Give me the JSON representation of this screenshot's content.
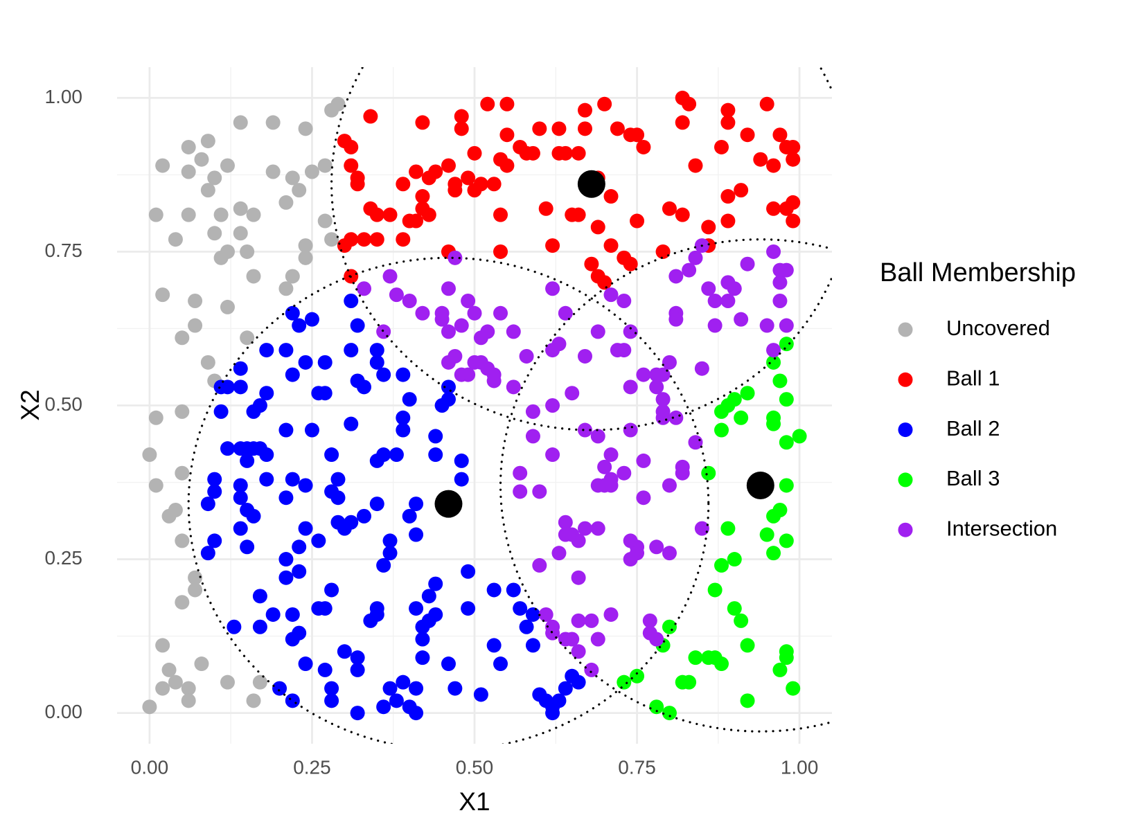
{
  "chart_data": {
    "type": "scatter",
    "xlabel": "X1",
    "ylabel": "X2",
    "legend_title": "Ball Membership",
    "legend": "right",
    "grid": true,
    "xlim": [
      -0.05,
      1.05
    ],
    "ylim": [
      -0.05,
      1.05
    ],
    "xticks": [
      {
        "value": 0,
        "label": "0.00"
      },
      {
        "value": 0.25,
        "label": "0.25"
      },
      {
        "value": 0.5,
        "label": "0.50"
      },
      {
        "value": 0.75,
        "label": "0.75"
      },
      {
        "value": 1,
        "label": "1.00"
      }
    ],
    "yticks": [
      {
        "value": 0,
        "label": "0.00"
      },
      {
        "value": 0.25,
        "label": "0.25"
      },
      {
        "value": 0.5,
        "label": "0.50"
      },
      {
        "value": 0.75,
        "label": "0.75"
      },
      {
        "value": 1,
        "label": "1.00"
      }
    ],
    "radius": 0.4,
    "centers": {
      "color": "#000000",
      "x": [
        0.68,
        0.46,
        0.94
      ],
      "values": [
        0.86,
        0.34,
        0.37
      ]
    },
    "series": [
      {
        "name": "Uncovered",
        "color": "#b3b3b3",
        "x": [
          0.01,
          0.02,
          0.06,
          0.06,
          0.06,
          0.04,
          0.09,
          0.08,
          0.1,
          0.12,
          0.09,
          0.11,
          0.14,
          0.14,
          0.16,
          0.14,
          0.19,
          0.24,
          0.19,
          0.22,
          0.25,
          0.27,
          0.21,
          0.23,
          0.27,
          0.28,
          0.29,
          0.28,
          0.24,
          0.24,
          0.1,
          0.11,
          0.12,
          0.15,
          0.16,
          0.21,
          0.22,
          0.12,
          0.02,
          0.07,
          0.07,
          0.05,
          0.15,
          0.09,
          0.1,
          0.01,
          0.05,
          0.0,
          0.01,
          0.05,
          0.04,
          0.03,
          0.05,
          0.07,
          0.07,
          0.05,
          0.02,
          0.08,
          0.03,
          0.02,
          0.04,
          0.06,
          0.06,
          0.12,
          0.17,
          0.16,
          0.0
        ],
        "values": [
          0.81,
          0.89,
          0.92,
          0.88,
          0.81,
          0.77,
          0.93,
          0.9,
          0.87,
          0.89,
          0.85,
          0.81,
          0.82,
          0.78,
          0.81,
          0.96,
          0.96,
          0.95,
          0.88,
          0.87,
          0.88,
          0.89,
          0.83,
          0.85,
          0.8,
          0.98,
          0.99,
          0.77,
          0.76,
          0.74,
          0.78,
          0.74,
          0.75,
          0.75,
          0.71,
          0.69,
          0.71,
          0.66,
          0.68,
          0.67,
          0.63,
          0.61,
          0.61,
          0.57,
          0.54,
          0.48,
          0.49,
          0.42,
          0.37,
          0.39,
          0.33,
          0.32,
          0.28,
          0.22,
          0.2,
          0.18,
          0.11,
          0.08,
          0.07,
          0.04,
          0.05,
          0.04,
          0.02,
          0.05,
          0.05,
          0.02,
          0.01
        ]
      },
      {
        "name": "Ball 1",
        "color": "#ff0000",
        "x": [
          0.3,
          0.31,
          0.31,
          0.32,
          0.32,
          0.34,
          0.3,
          0.31,
          0.33,
          0.35,
          0.34,
          0.35,
          0.37,
          0.31,
          0.39,
          0.4,
          0.41,
          0.39,
          0.41,
          0.42,
          0.42,
          0.43,
          0.44,
          0.42,
          0.43,
          0.46,
          0.46,
          0.47,
          0.47,
          0.48,
          0.48,
          0.49,
          0.5,
          0.5,
          0.51,
          0.52,
          0.53,
          0.55,
          0.55,
          0.54,
          0.55,
          0.54,
          0.54,
          0.57,
          0.58,
          0.59,
          0.6,
          0.61,
          0.63,
          0.63,
          0.64,
          0.62,
          0.66,
          0.67,
          0.67,
          0.65,
          0.66,
          0.69,
          0.69,
          0.7,
          0.71,
          0.71,
          0.68,
          0.69,
          0.7,
          0.72,
          0.74,
          0.75,
          0.76,
          0.75,
          0.73,
          0.74,
          0.79,
          0.8,
          0.82,
          0.82,
          0.83,
          0.82,
          0.84,
          0.86,
          0.86,
          0.88,
          0.89,
          0.89,
          0.89,
          0.89,
          0.91,
          0.92,
          0.94,
          0.95,
          0.96,
          0.96,
          0.97,
          0.98,
          0.99,
          0.99,
          0.99,
          0.99,
          0.98
        ],
        "values": [
          0.93,
          0.92,
          0.89,
          0.87,
          0.86,
          0.97,
          0.76,
          0.77,
          0.77,
          0.77,
          0.82,
          0.81,
          0.81,
          0.71,
          0.77,
          0.8,
          0.8,
          0.86,
          0.88,
          0.84,
          0.96,
          0.87,
          0.88,
          0.82,
          0.81,
          0.75,
          0.89,
          0.86,
          0.85,
          0.95,
          0.97,
          0.87,
          0.91,
          0.85,
          0.86,
          0.99,
          0.86,
          0.99,
          0.94,
          0.9,
          0.89,
          0.81,
          0.75,
          0.92,
          0.91,
          0.91,
          0.95,
          0.82,
          0.95,
          0.91,
          0.91,
          0.76,
          0.91,
          0.95,
          0.98,
          0.81,
          0.81,
          0.87,
          0.79,
          0.99,
          0.76,
          0.84,
          0.73,
          0.71,
          0.7,
          0.95,
          0.94,
          0.94,
          0.92,
          0.8,
          0.74,
          0.73,
          0.75,
          0.82,
          0.81,
          1.0,
          0.99,
          0.96,
          0.89,
          0.79,
          0.76,
          0.92,
          0.98,
          0.96,
          0.84,
          0.8,
          0.85,
          0.94,
          0.9,
          0.99,
          0.89,
          0.82,
          0.94,
          0.92,
          0.9,
          0.92,
          0.83,
          0.8,
          0.82
        ]
      },
      {
        "name": "Ball 2",
        "color": "#0000ff",
        "x": [
          0.22,
          0.23,
          0.25,
          0.22,
          0.24,
          0.26,
          0.27,
          0.27,
          0.18,
          0.21,
          0.11,
          0.12,
          0.14,
          0.14,
          0.11,
          0.16,
          0.17,
          0.18,
          0.21,
          0.25,
          0.12,
          0.14,
          0.15,
          0.16,
          0.17,
          0.18,
          0.15,
          0.1,
          0.1,
          0.09,
          0.14,
          0.14,
          0.15,
          0.16,
          0.18,
          0.22,
          0.24,
          0.21,
          0.14,
          0.15,
          0.1,
          0.09,
          0.24,
          0.26,
          0.23,
          0.28,
          0.29,
          0.28,
          0.29,
          0.29,
          0.31,
          0.3,
          0.33,
          0.31,
          0.35,
          0.31,
          0.32,
          0.33,
          0.32,
          0.31,
          0.35,
          0.35,
          0.36,
          0.39,
          0.4,
          0.39,
          0.39,
          0.35,
          0.36,
          0.38,
          0.41,
          0.4,
          0.41,
          0.37,
          0.37,
          0.36,
          0.44,
          0.44,
          0.46,
          0.45,
          0.46,
          0.48,
          0.48,
          0.21,
          0.21,
          0.23,
          0.17,
          0.17,
          0.19,
          0.13,
          0.22,
          0.22,
          0.23,
          0.26,
          0.27,
          0.28,
          0.2,
          0.22,
          0.24,
          0.27,
          0.28,
          0.28,
          0.3,
          0.32,
          0.32,
          0.32,
          0.35,
          0.34,
          0.35,
          0.37,
          0.36,
          0.38,
          0.39,
          0.4,
          0.41,
          0.41,
          0.41,
          0.42,
          0.42,
          0.42,
          0.43,
          0.43,
          0.44,
          0.44,
          0.46,
          0.47,
          0.49,
          0.49,
          0.51,
          0.53,
          0.53,
          0.54,
          0.56,
          0.57,
          0.58,
          0.59,
          0.59,
          0.6,
          0.61,
          0.62,
          0.63,
          0.64,
          0.65,
          0.66,
          0.62
        ],
        "values": [
          0.65,
          0.63,
          0.64,
          0.55,
          0.57,
          0.52,
          0.52,
          0.57,
          0.59,
          0.59,
          0.53,
          0.53,
          0.53,
          0.56,
          0.49,
          0.49,
          0.5,
          0.52,
          0.46,
          0.46,
          0.43,
          0.43,
          0.43,
          0.43,
          0.43,
          0.42,
          0.41,
          0.38,
          0.36,
          0.34,
          0.37,
          0.35,
          0.33,
          0.32,
          0.38,
          0.38,
          0.37,
          0.35,
          0.3,
          0.27,
          0.28,
          0.26,
          0.3,
          0.28,
          0.27,
          0.42,
          0.38,
          0.36,
          0.35,
          0.31,
          0.31,
          0.3,
          0.32,
          0.47,
          0.34,
          0.59,
          0.54,
          0.53,
          0.63,
          0.67,
          0.59,
          0.57,
          0.55,
          0.55,
          0.51,
          0.48,
          0.46,
          0.41,
          0.42,
          0.42,
          0.34,
          0.32,
          0.29,
          0.28,
          0.26,
          0.24,
          0.45,
          0.42,
          0.51,
          0.5,
          0.53,
          0.41,
          0.38,
          0.25,
          0.22,
          0.23,
          0.19,
          0.14,
          0.16,
          0.14,
          0.16,
          0.12,
          0.13,
          0.17,
          0.17,
          0.2,
          0.04,
          0.02,
          0.08,
          0.07,
          0.04,
          0.02,
          0.1,
          0.09,
          0.07,
          0.0,
          0.17,
          0.15,
          0.16,
          0.04,
          0.01,
          0.02,
          0.05,
          0.01,
          0.04,
          0.0,
          0.17,
          0.09,
          0.12,
          0.14,
          0.15,
          0.19,
          0.16,
          0.21,
          0.08,
          0.04,
          0.17,
          0.23,
          0.03,
          0.2,
          0.11,
          0.08,
          0.2,
          0.17,
          0.14,
          0.11,
          0.16,
          0.03,
          0.02,
          0.01,
          0.02,
          0.04,
          0.06,
          0.05,
          0.0
        ]
      },
      {
        "name": "Ball 3",
        "color": "#00ff00",
        "x": [
          0.98,
          0.96,
          0.97,
          0.98,
          0.98,
          1.0,
          0.96,
          0.96,
          0.9,
          0.92,
          0.89,
          0.88,
          0.91,
          0.88,
          0.86,
          0.98,
          0.96,
          0.97,
          0.95,
          0.98,
          0.96,
          0.89,
          0.9,
          0.88,
          0.87,
          0.9,
          0.91,
          0.92,
          0.8,
          0.79,
          0.84,
          0.86,
          0.87,
          0.88,
          0.82,
          0.83,
          0.75,
          0.73,
          0.78,
          0.8,
          0.92,
          0.97,
          0.98,
          0.98,
          0.99
        ],
        "values": [
          0.6,
          0.57,
          0.54,
          0.51,
          0.44,
          0.45,
          0.48,
          0.47,
          0.51,
          0.52,
          0.5,
          0.49,
          0.48,
          0.46,
          0.39,
          0.37,
          0.32,
          0.33,
          0.29,
          0.28,
          0.26,
          0.3,
          0.25,
          0.24,
          0.2,
          0.17,
          0.15,
          0.11,
          0.14,
          0.11,
          0.09,
          0.09,
          0.09,
          0.08,
          0.05,
          0.05,
          0.06,
          0.05,
          0.01,
          0.0,
          0.02,
          0.07,
          0.09,
          0.1,
          0.04
        ]
      },
      {
        "name": "Intersection",
        "color": "#a020f0",
        "x": [
          0.33,
          0.37,
          0.38,
          0.4,
          0.42,
          0.36,
          0.45,
          0.45,
          0.46,
          0.47,
          0.46,
          0.48,
          0.49,
          0.5,
          0.51,
          0.52,
          0.54,
          0.56,
          0.46,
          0.47,
          0.48,
          0.49,
          0.5,
          0.51,
          0.52,
          0.53,
          0.53,
          0.56,
          0.58,
          0.59,
          0.59,
          0.57,
          0.57,
          0.6,
          0.62,
          0.62,
          0.62,
          0.63,
          0.62,
          0.64,
          0.65,
          0.67,
          0.69,
          0.67,
          0.69,
          0.71,
          0.7,
          0.7,
          0.71,
          0.69,
          0.71,
          0.72,
          0.73,
          0.71,
          0.73,
          0.74,
          0.74,
          0.73,
          0.74,
          0.76,
          0.76,
          0.76,
          0.78,
          0.78,
          0.79,
          0.8,
          0.79,
          0.79,
          0.79,
          0.81,
          0.8,
          0.82,
          0.82,
          0.84,
          0.85,
          0.81,
          0.81,
          0.81,
          0.83,
          0.84,
          0.85,
          0.86,
          0.87,
          0.87,
          0.89,
          0.89,
          0.9,
          0.91,
          0.92,
          0.95,
          0.96,
          0.97,
          0.97,
          0.97,
          0.98,
          0.96,
          0.98,
          0.85,
          0.64,
          0.64,
          0.63,
          0.65,
          0.66,
          0.67,
          0.69,
          0.66,
          0.6,
          0.74,
          0.75,
          0.75,
          0.74,
          0.78,
          0.8,
          0.61,
          0.62,
          0.62,
          0.64,
          0.65,
          0.66,
          0.66,
          0.68,
          0.69,
          0.71,
          0.68,
          0.77,
          0.77,
          0.78
        ],
        "values": [
          0.69,
          0.71,
          0.68,
          0.67,
          0.65,
          0.62,
          0.64,
          0.65,
          0.69,
          0.74,
          0.62,
          0.63,
          0.67,
          0.65,
          0.61,
          0.62,
          0.65,
          0.62,
          0.57,
          0.58,
          0.55,
          0.55,
          0.57,
          0.57,
          0.56,
          0.55,
          0.54,
          0.53,
          0.58,
          0.49,
          0.45,
          0.39,
          0.36,
          0.36,
          0.42,
          0.5,
          0.59,
          0.6,
          0.69,
          0.65,
          0.52,
          0.58,
          0.62,
          0.46,
          0.45,
          0.42,
          0.4,
          0.37,
          0.38,
          0.37,
          0.37,
          0.59,
          0.59,
          0.68,
          0.67,
          0.62,
          0.53,
          0.39,
          0.46,
          0.55,
          0.41,
          0.35,
          0.53,
          0.55,
          0.55,
          0.57,
          0.51,
          0.49,
          0.48,
          0.48,
          0.37,
          0.4,
          0.39,
          0.44,
          0.56,
          0.65,
          0.64,
          0.71,
          0.72,
          0.74,
          0.76,
          0.69,
          0.67,
          0.63,
          0.7,
          0.67,
          0.69,
          0.64,
          0.73,
          0.63,
          0.59,
          0.67,
          0.7,
          0.72,
          0.72,
          0.75,
          0.63,
          0.3,
          0.31,
          0.29,
          0.26,
          0.29,
          0.28,
          0.3,
          0.3,
          0.22,
          0.24,
          0.28,
          0.27,
          0.26,
          0.25,
          0.27,
          0.26,
          0.16,
          0.14,
          0.13,
          0.12,
          0.12,
          0.1,
          0.15,
          0.15,
          0.12,
          0.16,
          0.07,
          0.15,
          0.13,
          0.12
        ]
      }
    ]
  }
}
